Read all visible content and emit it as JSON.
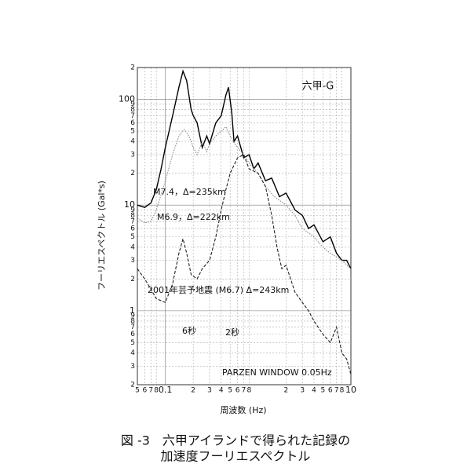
{
  "chart_data": {
    "type": "line",
    "title": "六甲-G",
    "xlabel": "周波数 (Hz)",
    "ylabel": "フーリエスペクトル (Gal*s)",
    "log_x": true,
    "log_y": true,
    "grid": true,
    "xlim": [
      0.05,
      10
    ],
    "ylim": [
      0.2,
      200
    ],
    "xticks": [
      {
        "value": 0.05,
        "label": "5"
      },
      {
        "value": 0.06,
        "label": "6"
      },
      {
        "value": 0.07,
        "label": "7"
      },
      {
        "value": 0.08,
        "label": "8"
      },
      0.1,
      {
        "value": 0.2,
        "label": "2"
      },
      {
        "value": 0.3,
        "label": "3"
      },
      {
        "value": 0.4,
        "label": "4"
      },
      {
        "value": 0.5,
        "label": "5"
      },
      {
        "value": 0.6,
        "label": "6"
      },
      {
        "value": 0.7,
        "label": "7"
      },
      {
        "value": 0.8,
        "label": "8"
      },
      {
        "value": 2,
        "label": "2"
      },
      {
        "value": 3,
        "label": "3"
      },
      {
        "value": 4,
        "label": "4"
      },
      {
        "value": 5,
        "label": "5"
      },
      {
        "value": 6,
        "label": "6"
      },
      {
        "value": 7,
        "label": "7"
      },
      {
        "value": 8,
        "label": "8"
      },
      10
    ],
    "yticks": [
      {
        "value": 0.2,
        "label": "2"
      },
      {
        "value": 0.3,
        "label": "3"
      },
      {
        "value": 0.4,
        "label": "4"
      },
      {
        "value": 0.5,
        "label": "5"
      },
      {
        "value": 0.6,
        "label": "6"
      },
      {
        "value": 0.7,
        "label": "7"
      },
      {
        "value": 0.8,
        "label": "8"
      },
      {
        "value": 0.9,
        "label": "9"
      },
      1,
      {
        "value": 2,
        "label": "2"
      },
      {
        "value": 3,
        "label": "3"
      },
      {
        "value": 4,
        "label": "4"
      },
      {
        "value": 5,
        "label": "5"
      },
      {
        "value": 6,
        "label": "6"
      },
      {
        "value": 7,
        "label": "7"
      },
      {
        "value": 8,
        "label": "8"
      },
      {
        "value": 9,
        "label": "9"
      },
      10,
      {
        "value": 20,
        "label": "2"
      },
      {
        "value": 30,
        "label": "3"
      },
      {
        "value": 40,
        "label": "4"
      },
      {
        "value": 50,
        "label": "5"
      },
      {
        "value": 60,
        "label": "6"
      },
      {
        "value": 70,
        "label": "7"
      },
      {
        "value": 80,
        "label": "8"
      },
      {
        "value": 90,
        "label": "9"
      },
      100,
      {
        "value": 200,
        "label": "2"
      }
    ],
    "series": [
      {
        "name": "M7.4，Δ=235km",
        "color": "#000000",
        "style": "solid",
        "x": [
          0.05,
          0.06,
          0.07,
          0.08,
          0.09,
          0.1,
          0.12,
          0.14,
          0.155,
          0.17,
          0.19,
          0.2,
          0.22,
          0.25,
          0.28,
          0.3,
          0.35,
          0.4,
          0.45,
          0.48,
          0.52,
          0.55,
          0.6,
          0.7,
          0.8,
          0.9,
          1.0,
          1.2,
          1.4,
          1.7,
          2,
          2.5,
          3,
          3.5,
          4,
          5,
          6,
          7,
          8,
          9,
          10
        ],
        "values": [
          10,
          9.5,
          10.5,
          14,
          22,
          35,
          70,
          130,
          185,
          150,
          80,
          70,
          60,
          35,
          45,
          38,
          60,
          70,
          110,
          130,
          75,
          40,
          45,
          28,
          30,
          22,
          25,
          17,
          18,
          12,
          13,
          9,
          8,
          6,
          6.5,
          4.5,
          5,
          3.5,
          3,
          3,
          2.5
        ]
      },
      {
        "name": "M6.9，Δ=222km",
        "color": "#8a8a8a",
        "style": "dotted",
        "x": [
          0.05,
          0.06,
          0.07,
          0.08,
          0.1,
          0.12,
          0.14,
          0.16,
          0.18,
          0.2,
          0.22,
          0.25,
          0.28,
          0.3,
          0.35,
          0.4,
          0.45,
          0.5,
          0.6,
          0.7,
          0.8,
          1,
          1.2,
          1.5,
          2,
          2.5,
          3,
          4,
          5,
          6,
          8,
          10
        ],
        "values": [
          7.5,
          6.8,
          7,
          9,
          17,
          30,
          45,
          52,
          45,
          35,
          30,
          40,
          32,
          38,
          45,
          50,
          55,
          45,
          35,
          30,
          25,
          20,
          15,
          12,
          10,
          8,
          6,
          5,
          4,
          3.5,
          3,
          2.5
        ]
      },
      {
        "name": "2001年芸予地震 (M6.7) Δ=243km",
        "color": "#222222",
        "style": "dashed",
        "x": [
          0.05,
          0.06,
          0.07,
          0.08,
          0.1,
          0.12,
          0.14,
          0.155,
          0.17,
          0.19,
          0.22,
          0.25,
          0.3,
          0.35,
          0.4,
          0.45,
          0.5,
          0.6,
          0.7,
          0.8,
          1.0,
          1.2,
          1.4,
          1.6,
          1.8,
          2,
          2.5,
          3,
          3.5,
          4,
          5,
          6,
          7,
          8,
          9,
          10
        ],
        "values": [
          2.5,
          2,
          1.6,
          1.3,
          1.2,
          1.8,
          3.5,
          4.8,
          3.5,
          2.2,
          2,
          2.5,
          3,
          5,
          9,
          14,
          20,
          28,
          30,
          22,
          20,
          15,
          8,
          4,
          2.5,
          2.7,
          1.5,
          1.2,
          1,
          0.8,
          0.6,
          0.5,
          0.7,
          0.4,
          0.35,
          0.25
        ]
      }
    ],
    "annotations": [
      "6秒",
      "2秒",
      "PARZEN WINDOW 0.05Hz"
    ],
    "caption": [
      "図 -3　六甲アイランドで得られた記録の",
      "加速度フーリエスペクトル"
    ]
  }
}
